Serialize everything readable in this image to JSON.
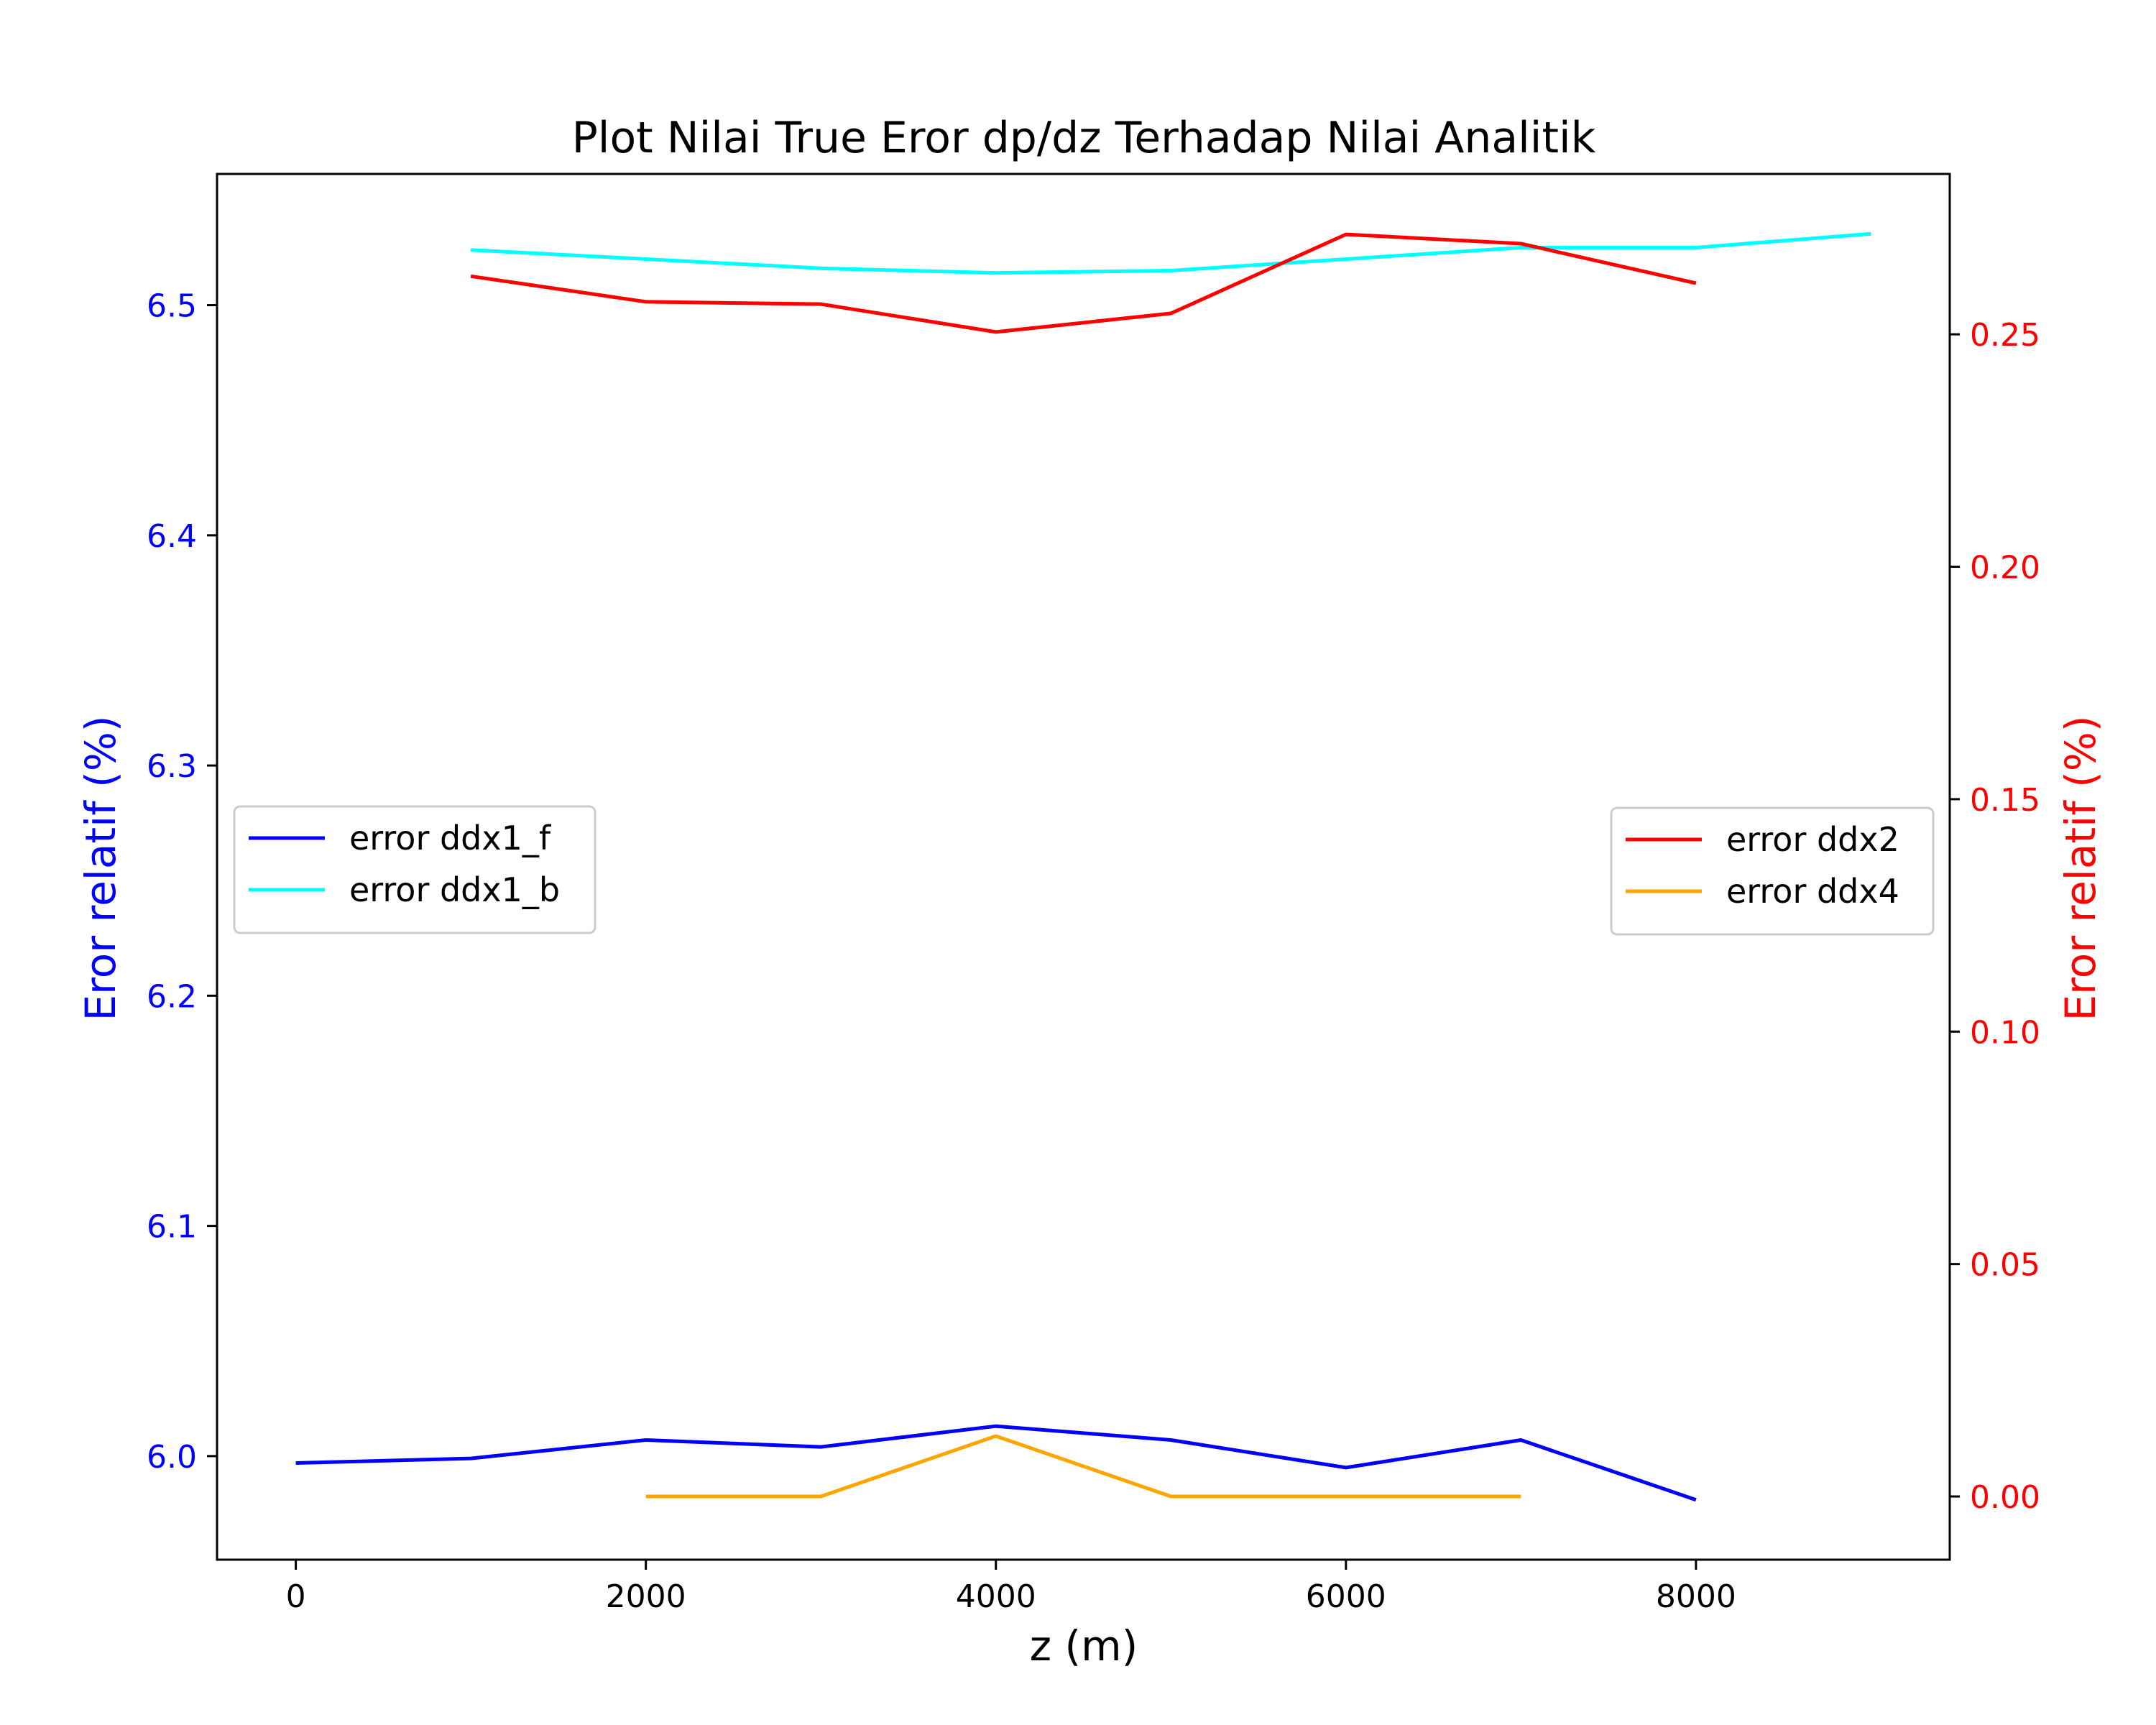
{
  "chart_data": {
    "type": "line",
    "title": "Plot Nilai True Eror dp/dz Terhadap Nilai Analitik",
    "xlabel": "z (m)",
    "ylabel_left": "Eror relatif (%)",
    "ylabel_right": "Eror relatif (%)",
    "xlim": [
      -450,
      9450
    ],
    "ylim_left": [
      5.955,
      6.557
    ],
    "ylim_right": [
      -0.0136,
      0.2845
    ],
    "x_ticks": [
      "0",
      "2000",
      "4000",
      "6000",
      "8000"
    ],
    "y_ticks_left": [
      "6.0",
      "6.1",
      "6.2",
      "6.3",
      "6.4",
      "6.5"
    ],
    "y_ticks_right": [
      "0.00",
      "0.05",
      "0.10",
      "0.15",
      "0.20",
      "0.25"
    ],
    "grid": false,
    "legend_left_placement": "center-left",
    "legend_right_placement": "center-right",
    "colors": {
      "left_axis": "#0000ff",
      "right_axis": "#ff0000",
      "ddx1_f": "#0000ff",
      "ddx1_b": "#00ffff",
      "ddx2": "#ff0000",
      "ddx4": "#ffa500"
    },
    "series": [
      {
        "name": "error ddx1_f",
        "axis": "left",
        "color": "#0000ff",
        "x": [
          0,
          1000,
          2000,
          3000,
          4000,
          5000,
          6000,
          7000,
          8000
        ],
        "values": [
          5.997,
          5.999,
          6.007,
          6.004,
          6.013,
          6.007,
          5.995,
          6.007,
          5.981
        ]
      },
      {
        "name": "error ddx1_b",
        "axis": "left",
        "color": "#00ffff",
        "x": [
          1000,
          2000,
          3000,
          4000,
          5000,
          6000,
          7000,
          8000,
          9000
        ],
        "values": [
          6.524,
          6.52,
          6.516,
          6.514,
          6.515,
          6.52,
          6.525,
          6.525,
          6.531
        ]
      },
      {
        "name": "error ddx2",
        "axis": "right",
        "color": "#ff0000",
        "x": [
          1000,
          2000,
          3000,
          4000,
          5000,
          6000,
          7000,
          8000
        ],
        "values": [
          0.2625,
          0.257,
          0.2565,
          0.2505,
          0.2545,
          0.2715,
          0.2695,
          0.261
        ]
      },
      {
        "name": "error ddx4",
        "axis": "right",
        "color": "#ffa500",
        "x": [
          2000,
          3000,
          4000,
          5000,
          6000,
          7000
        ],
        "values": [
          0.0,
          0.0,
          0.013,
          0.0,
          0.0,
          0.0
        ]
      }
    ]
  }
}
